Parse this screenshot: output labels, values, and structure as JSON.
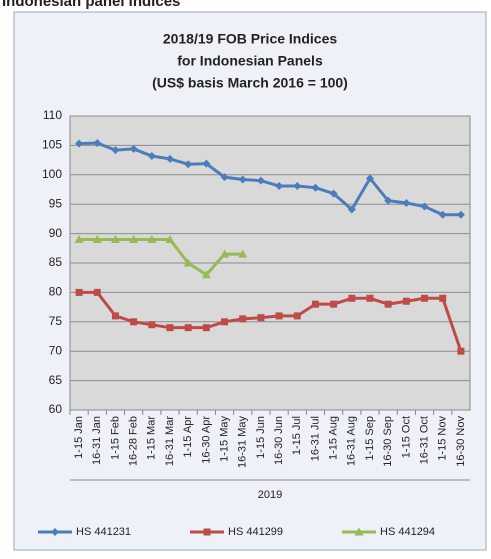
{
  "heading": "Indonesian panel indices",
  "chart_data": {
    "type": "line",
    "title": [
      "2018/19 FOB Price Indices",
      "for Indonesian Panels",
      "(US$ basis March 2016 = 100)"
    ],
    "xlabel": "2019",
    "categories": [
      "1-15 Jan",
      "16-31 Jan",
      "1-15 Feb",
      "16-28 Feb",
      "1-15 Mar",
      "16-31 Mar",
      "1-15 Apr",
      "16-30 Apr",
      "1-15 May",
      "16-31 May",
      "1-15 Jun",
      "16-30 Jun",
      "1-15 Jul",
      "16-31 Jul",
      "1-15 Aug",
      "16-31 Aug",
      "1-15 Sep",
      "16-30 Sep",
      "1-15 Oct",
      "16-31 Oct",
      "1-15 Nov",
      "16-30 Nov"
    ],
    "series": [
      {
        "name": "HS 441231",
        "color": "#4a7ebb",
        "marker": "diamond",
        "values": [
          105.3,
          105.4,
          104.2,
          104.4,
          103.2,
          102.7,
          101.8,
          101.9,
          99.6,
          99.2,
          99.0,
          98.1,
          98.1,
          97.8,
          96.8,
          94.1,
          99.4,
          95.6,
          95.2,
          94.6,
          93.2,
          93.2
        ]
      },
      {
        "name": "HS 441299",
        "color": "#be4b48",
        "marker": "square",
        "values": [
          80,
          80,
          76,
          75,
          74.5,
          74,
          74,
          74,
          75,
          75.5,
          75.7,
          76,
          76,
          78,
          78,
          79,
          79,
          78,
          78.5,
          79,
          79,
          70
        ]
      },
      {
        "name": "HS 441294",
        "color": "#98b954",
        "marker": "triangle",
        "values": [
          89,
          89,
          89,
          89,
          89,
          89,
          85,
          83,
          86.5,
          86.5,
          null,
          null,
          null,
          null,
          null,
          null,
          null,
          null,
          null,
          null,
          null,
          null
        ]
      }
    ],
    "ylim": [
      60,
      110
    ],
    "yticks": [
      60,
      65,
      70,
      75,
      80,
      85,
      90,
      95,
      100,
      105,
      110
    ],
    "grid": true
  }
}
